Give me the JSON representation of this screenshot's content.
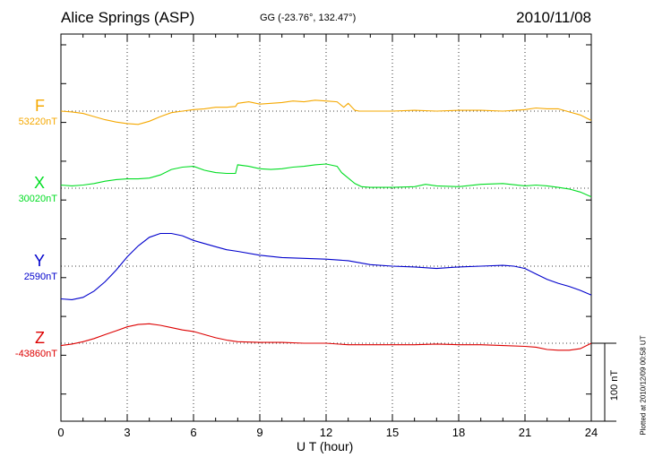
{
  "header": {
    "station": "Alice Springs (ASP)",
    "coords": "GG (-23.76°, 132.47°)",
    "date": "2010/11/08"
  },
  "footer": {
    "plotted": "Plotted at 2010/12/09 00:58 UT"
  },
  "colors": {
    "F": "#f5a800",
    "X": "#00dd22",
    "Y": "#0000cc",
    "Z": "#dd0000"
  },
  "chart_data": {
    "type": "line",
    "xlabel": "U T (hour)",
    "xlim": [
      0,
      24
    ],
    "xticks": [
      0,
      3,
      6,
      9,
      12,
      15,
      18,
      21,
      24
    ],
    "scale_bar": {
      "label": "100 nT",
      "value_nT": 100
    },
    "grid": true,
    "series": [
      {
        "name": "F",
        "baseline_label": "53220nT",
        "baseline_nT": 53220,
        "x": [
          0,
          0.5,
          1,
          1.5,
          2,
          2.5,
          3,
          3.5,
          4,
          4.5,
          5,
          5.5,
          6,
          6.5,
          7,
          7.5,
          7.9,
          8,
          8.5,
          9,
          9.5,
          10,
          10.5,
          11,
          11.5,
          12,
          12.5,
          12.8,
          13,
          13.3,
          13.5,
          14,
          15,
          16,
          17,
          18,
          19,
          20,
          21,
          21.5,
          22,
          22.5,
          23,
          23.5,
          24
        ],
        "values": [
          0,
          -1,
          -3,
          -7,
          -11,
          -14,
          -16,
          -17,
          -13,
          -7,
          -2,
          0,
          2,
          3,
          5,
          5,
          6,
          10,
          12,
          9,
          10,
          11,
          13,
          12,
          14,
          13,
          12,
          5,
          10,
          1,
          0,
          0,
          0,
          1,
          0,
          1,
          1,
          0,
          2,
          4,
          3,
          3,
          -1,
          -5,
          -12
        ]
      },
      {
        "name": "X",
        "baseline_label": "30020nT",
        "baseline_nT": 30020,
        "x": [
          0,
          0.5,
          1,
          1.5,
          2,
          2.5,
          3,
          3.5,
          4,
          4.5,
          5,
          5.5,
          6,
          6.5,
          7,
          7.5,
          7.9,
          8,
          8.5,
          9,
          9.5,
          10,
          10.5,
          11,
          11.5,
          12,
          12.5,
          12.7,
          13,
          13.3,
          13.6,
          14,
          15,
          16,
          16.5,
          17,
          18,
          19,
          20,
          21,
          21.5,
          22,
          22.5,
          23,
          23.5,
          24
        ],
        "values": [
          4,
          3,
          4,
          6,
          9,
          11,
          12,
          12,
          13,
          17,
          24,
          27,
          28,
          23,
          20,
          19,
          19,
          30,
          28,
          25,
          24,
          25,
          27,
          28,
          30,
          31,
          28,
          20,
          13,
          6,
          2,
          1,
          1,
          2,
          5,
          3,
          2,
          5,
          6,
          3,
          4,
          3,
          1,
          -1,
          -5,
          -11
        ]
      },
      {
        "name": "Y",
        "baseline_label": "2590nT",
        "baseline_nT": 2590,
        "x": [
          0,
          0.5,
          1,
          1.5,
          2,
          2.5,
          3,
          3.5,
          4,
          4.5,
          5,
          5.5,
          6,
          6.5,
          7,
          7.5,
          8,
          9,
          10,
          11,
          12,
          13,
          14,
          15,
          16,
          17,
          18,
          19,
          20,
          20.5,
          21,
          21.5,
          22,
          22.5,
          23,
          23.5,
          24
        ],
        "values": [
          -42,
          -43,
          -40,
          -32,
          -20,
          -5,
          12,
          26,
          37,
          42,
          42,
          39,
          33,
          29,
          25,
          21,
          19,
          14,
          11,
          10,
          9,
          7,
          2,
          0,
          -1,
          -3,
          -1,
          0,
          1,
          0,
          -3,
          -10,
          -17,
          -22,
          -26,
          -31,
          -37
        ]
      },
      {
        "name": "Z",
        "baseline_label": "-43860nT",
        "baseline_nT": -43860,
        "x": [
          0,
          0.5,
          1,
          1.5,
          2,
          2.5,
          3,
          3.5,
          4,
          4.5,
          5,
          5.5,
          6,
          6.5,
          7,
          7.5,
          8,
          9,
          10,
          11,
          12,
          13,
          14,
          15,
          16,
          17,
          18,
          19,
          20,
          21,
          21.5,
          22,
          22.5,
          23,
          23.5,
          24
        ],
        "values": [
          -3,
          -1,
          2,
          6,
          11,
          16,
          21,
          24,
          25,
          23,
          20,
          17,
          15,
          11,
          7,
          4,
          2,
          1,
          1,
          0,
          0,
          -2,
          -2,
          -2,
          -2,
          -1,
          -2,
          -2,
          -3,
          -4,
          -5,
          -8,
          -9,
          -9,
          -7,
          0
        ]
      }
    ]
  }
}
